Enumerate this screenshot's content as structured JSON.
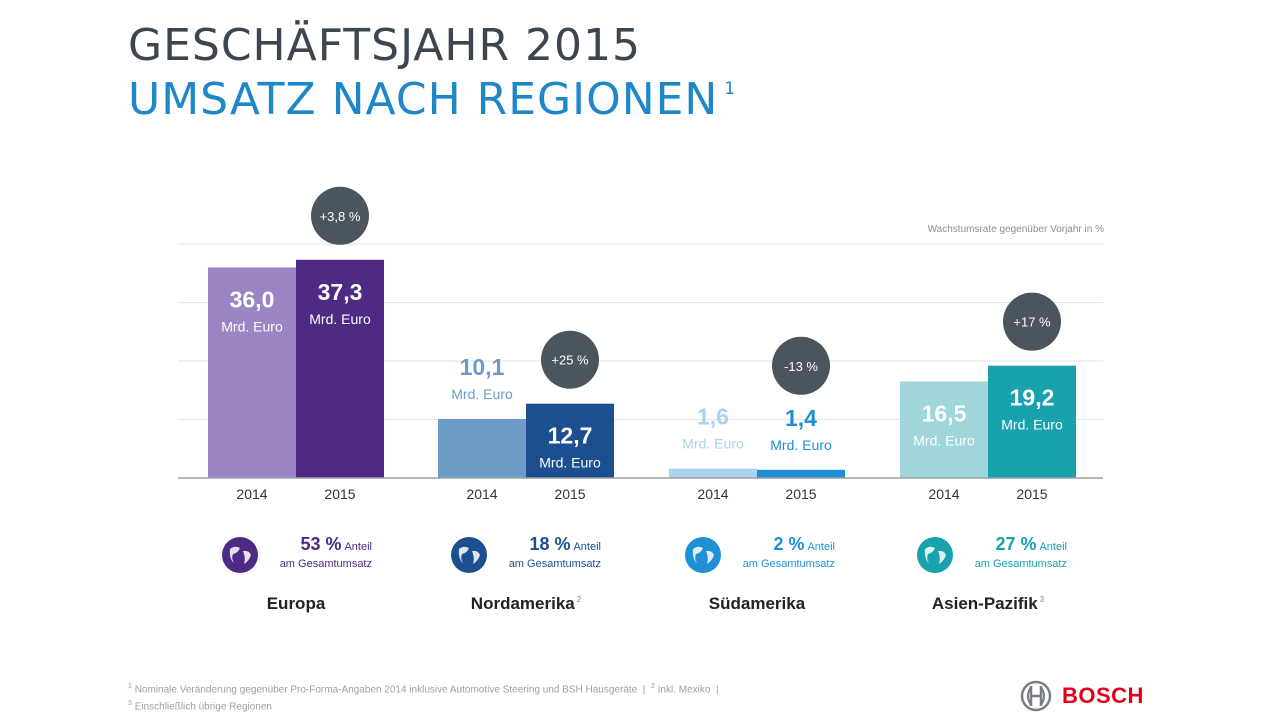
{
  "header": {
    "title_line1": "GESCHÄFTSJAHR 2015",
    "title_line2": "UMSATZ NACH REGIONEN",
    "title_footnote_mark": "1"
  },
  "axis_note": "Wachstumsrate gegenüber Vorjahr in %",
  "chart_data": {
    "type": "bar",
    "title": "UMSATZ NACH REGIONEN",
    "categories": [
      "Europa",
      "Nordamerika",
      "Südamerika",
      "Asien-Pazifik"
    ],
    "series": [
      {
        "name": "2014",
        "values": [
          36.0,
          10.1,
          1.6,
          16.5
        ],
        "labels": [
          "36,0",
          "10,1",
          "1,6",
          "16,5"
        ]
      },
      {
        "name": "2015",
        "values": [
          37.3,
          12.7,
          1.4,
          19.2
        ],
        "labels": [
          "37,3",
          "12,7",
          "1,4",
          "19,2"
        ]
      }
    ],
    "unit_label": "Mrd. Euro",
    "growth_labels": [
      "+3,8 %",
      "+25 %",
      "-13 %",
      "+17 %"
    ],
    "ylim": [
      0,
      40
    ],
    "grid": true
  },
  "regions": [
    {
      "name": "Europa",
      "name_mark": "",
      "share_pct": "53 %",
      "share_word": "Anteil",
      "share_sub": "am Gesamtumsatz",
      "icon": "globe-europe-icon",
      "colors": {
        "y2014": "#9b85c4",
        "y2015": "#4e2a84",
        "text2014": "#9b85c4",
        "text2015": "#ffffff",
        "text2014_inner": "#ffffff"
      }
    },
    {
      "name": "Nordamerika",
      "name_mark": "2",
      "share_pct": "18 %",
      "share_word": "Anteil",
      "share_sub": "am Gesamtumsatz",
      "icon": "globe-north-america-icon",
      "colors": {
        "y2014": "#6d9cc9",
        "y2015": "#1b4f8f",
        "text2014_inner": "#ffffff"
      }
    },
    {
      "name": "Südamerika",
      "name_mark": "",
      "share_pct": "2 %",
      "share_word": "Anteil",
      "share_sub": "am Gesamtumsatz",
      "icon": "globe-south-america-icon",
      "colors": {
        "y2014": "#a9d3ef",
        "y2015": "#1f90d6",
        "text2014_inner": "#a9d3ef"
      }
    },
    {
      "name": "Asien-Pazifik",
      "name_mark": "3",
      "share_pct": "27 %",
      "share_word": "Anteil",
      "share_sub": "am Gesamtumsatz",
      "icon": "globe-asia-icon",
      "colors": {
        "y2014": "#9fd6d9",
        "y2015": "#17a2ad",
        "text2014_inner": "#ffffff"
      }
    }
  ],
  "year_labels": [
    "2014",
    "2015"
  ],
  "footnote": {
    "mark1": "1",
    "line1": "Nominale Veränderung gegenüber Pro-Forma-Angaben 2014 inklusive Automotive Steering und BSH Hausgeräte",
    "sep": "|",
    "mark2": "2",
    "text2": "Inkl. Mexiko",
    "mark3": "3",
    "line2": "Einschließlich übrige Regionen"
  },
  "brand": {
    "name": "BOSCH",
    "color": "#e2001a",
    "icon": "bosch-armature-logo-icon"
  }
}
